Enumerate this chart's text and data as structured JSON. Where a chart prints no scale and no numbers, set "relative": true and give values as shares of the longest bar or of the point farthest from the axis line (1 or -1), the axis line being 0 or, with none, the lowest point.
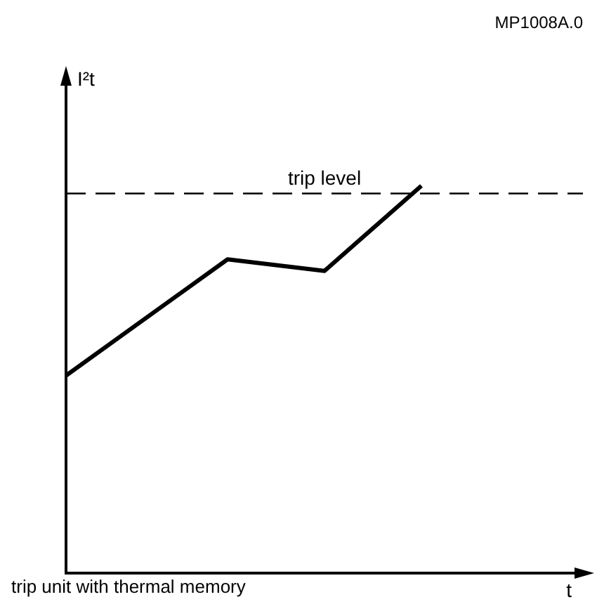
{
  "chart_data": {
    "type": "line",
    "relative": true,
    "ylabel": "I²t",
    "xlabel": "t",
    "categories": [
      null,
      null,
      null,
      null,
      null,
      null,
      null,
      null,
      null,
      null,
      null,
      null,
      null,
      null,
      null,
      null,
      null
    ],
    "series": [
      {
        "color": "#000000",
        "values": [
          0.51,
          null,
          null,
          null,
          null,
          0.81,
          null,
          null,
          0.78,
          null,
          null,
          1,
          null,
          null,
          null,
          null,
          null
        ]
      }
    ],
    "ref_lines": [
      {
        "axis": "y",
        "value": 0.98,
        "label": "trip level",
        "color": "#000000",
        "line_style": "dashed"
      }
    ],
    "annotations": [
      "MP1008A.0",
      "trip unit with thermal memory"
    ],
    "legend": false,
    "marker": "none",
    "line_style": "solid"
  }
}
